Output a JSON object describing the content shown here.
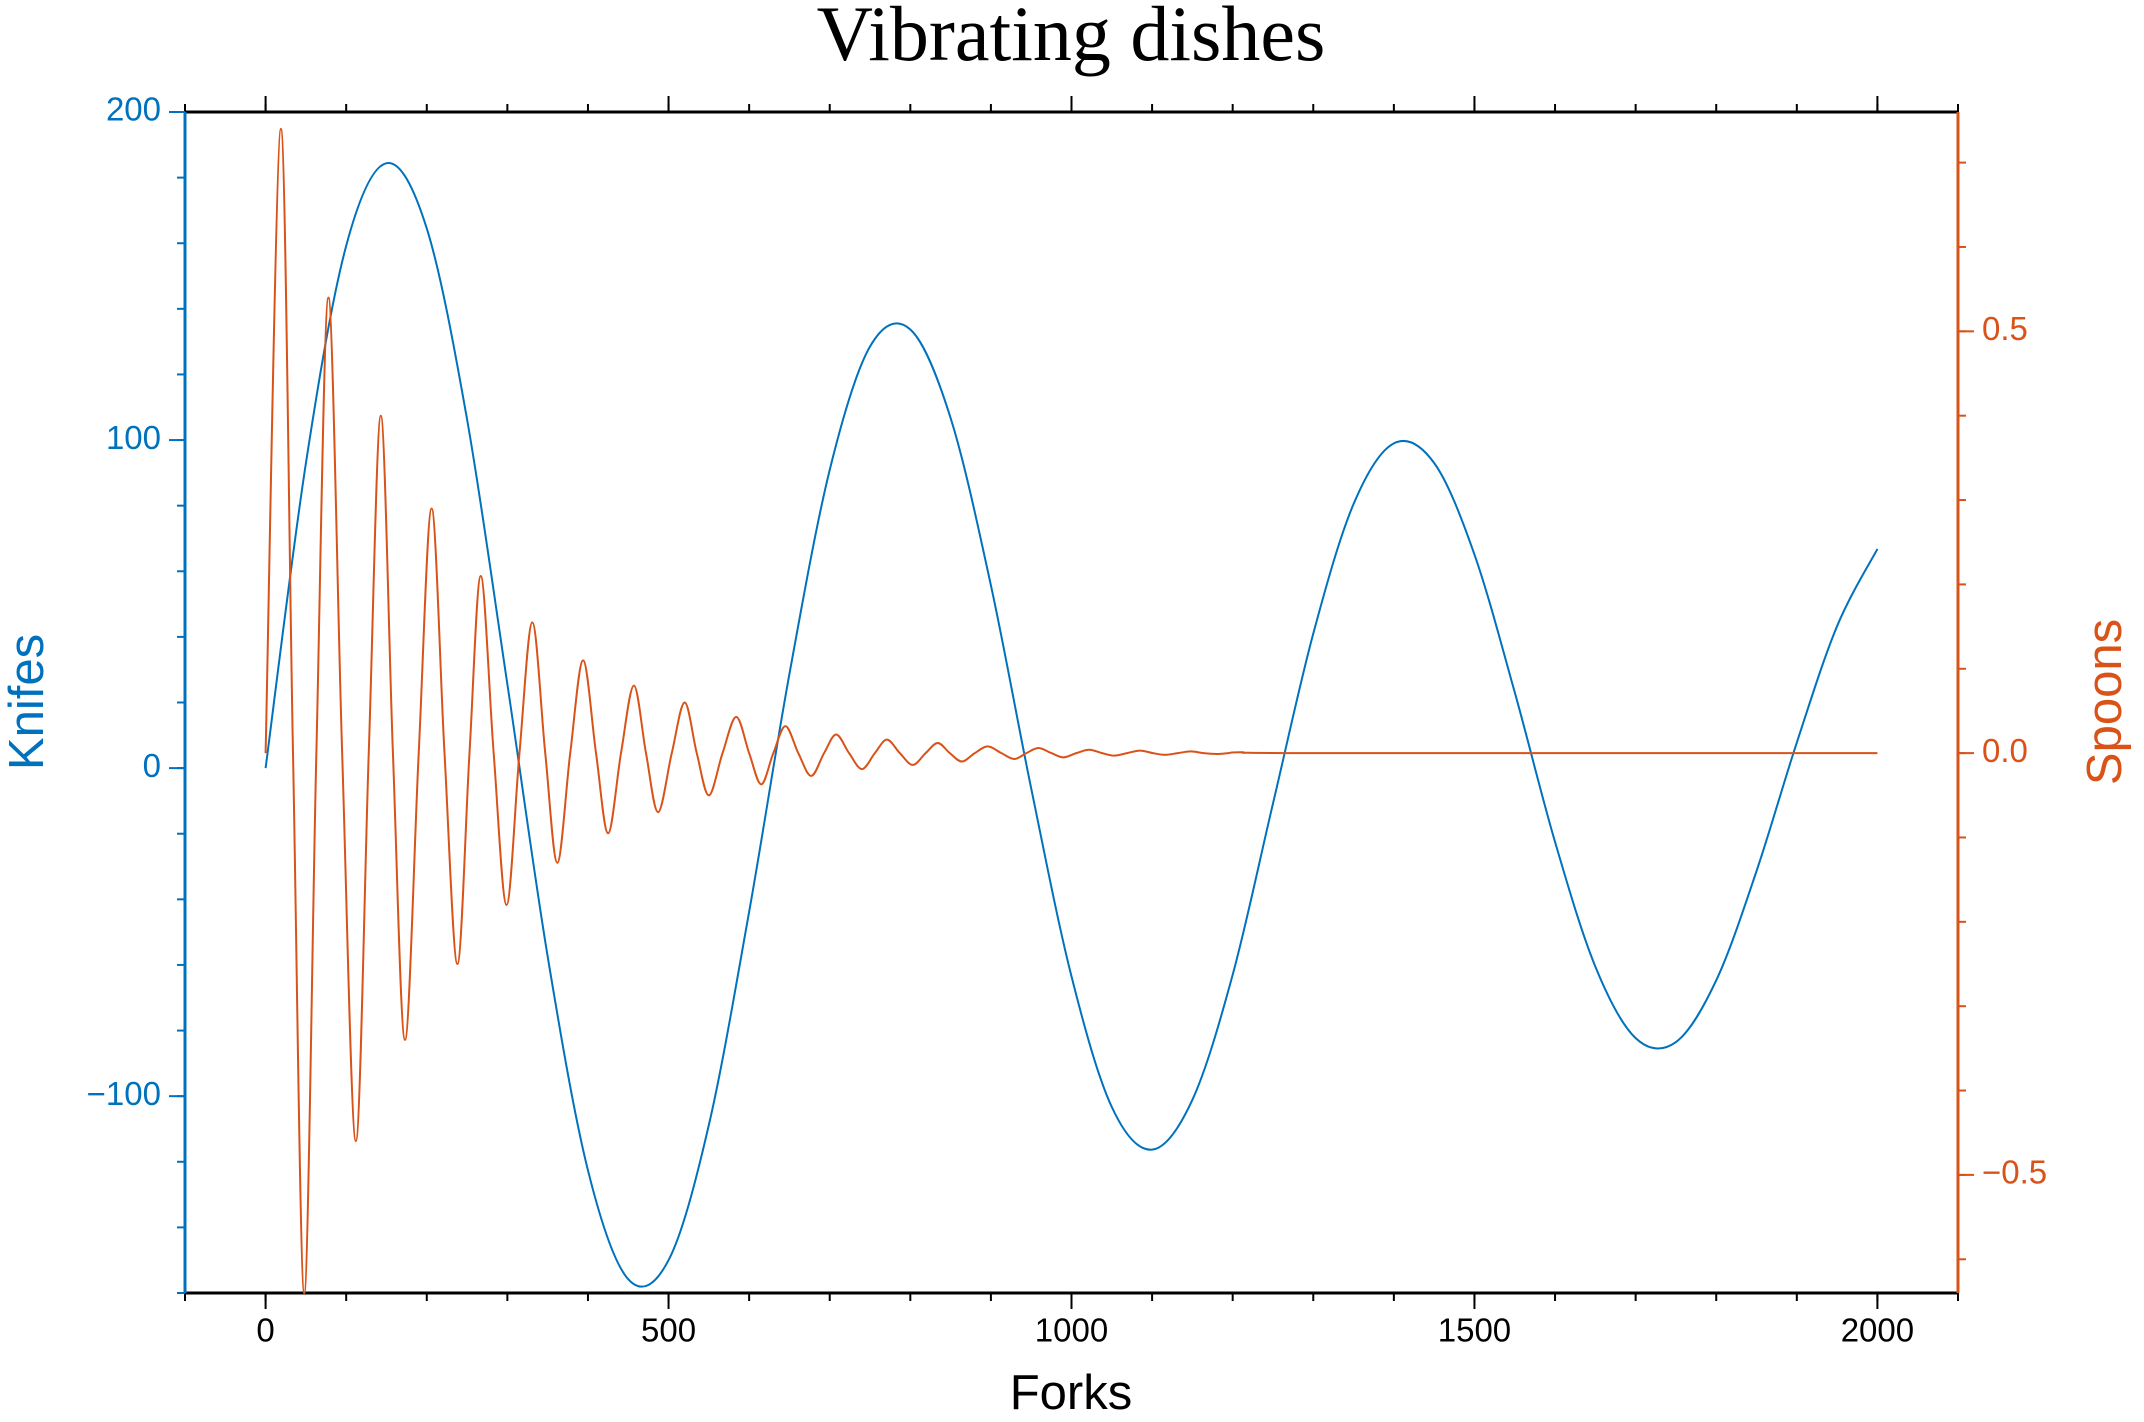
{
  "chart_data": {
    "type": "line",
    "title": "Vibrating dishes",
    "xlabel": "Forks",
    "ylabel": "Knifes",
    "y2label": "Spoons",
    "xlim": [
      -100,
      2100
    ],
    "xticks": [
      0,
      500,
      1000,
      1500,
      2000
    ],
    "xminorticks": [
      -100,
      0,
      100,
      200,
      300,
      400,
      500,
      600,
      700,
      800,
      900,
      1000,
      1100,
      1200,
      1300,
      1400,
      1500,
      1600,
      1700,
      1800,
      1900,
      2000,
      2100
    ],
    "ylim": [
      -160,
      200
    ],
    "yticks": [
      {
        "value": -100,
        "label": "−100"
      },
      0,
      100,
      200
    ],
    "yminorticks": [
      -160,
      -140,
      -120,
      -100,
      -80,
      -60,
      -40,
      -20,
      0,
      20,
      40,
      60,
      80,
      100,
      120,
      140,
      160,
      180,
      200
    ],
    "y2lim": [
      -0.64,
      0.76
    ],
    "y2ticks": [
      {
        "value": -0.5,
        "label": "−0.5"
      },
      {
        "value": 0,
        "label": "0.0"
      },
      0.5
    ],
    "y2minorticks": [
      -0.6,
      -0.5,
      -0.4,
      -0.3,
      -0.2,
      -0.1,
      0,
      0.1,
      0.2,
      0.3,
      0.4,
      0.5,
      0.6,
      0.7
    ],
    "y_color": "#0072bd",
    "y2_color": "#d95319",
    "frame_color": "#000000",
    "series": [
      {
        "color": "#0072bd",
        "x": [
          0,
          50,
          100,
          150,
          200,
          250,
          300,
          350,
          400,
          450,
          500,
          550,
          600,
          650,
          700,
          750,
          800,
          850,
          900,
          950,
          1000,
          1050,
          1100,
          1150,
          1200,
          1250,
          1300,
          1350,
          1400,
          1450,
          1500,
          1550,
          1600,
          1650,
          1700,
          1750,
          1800,
          1850,
          1900,
          1950,
          2000
        ],
        "values": [
          0,
          92.9,
          159.2,
          184.4,
          164.5,
          106.3,
          25.6,
          -57.4,
          -122.6,
          -155.8,
          -150.0,
          -108.8,
          -43.8,
          28.7,
          90.9,
          128.5,
          133.7,
          106.7,
          55.7,
          -6.2,
          -63.5,
          -103.3,
          -116.3,
          -101.1,
          -63.0,
          -10.8,
          41.0,
          80.5,
          99.0,
          93.0,
          65.1,
          23.1,
          -22.5,
          -60.5,
          -82.3,
          -83.5,
          -64.7,
          -31.4,
          7.8,
          43.3,
          66.8
        ]
      },
      {
        "color": "#d95319",
        "axis": "y2",
        "x": [
          0,
          19,
          34,
          48,
          63,
          78,
          95,
          112,
          128,
          143,
          158,
          173,
          190,
          206,
          222,
          238,
          253,
          267,
          283,
          299,
          315,
          331,
          347,
          362,
          378,
          394,
          410,
          425,
          441,
          457,
          472,
          487,
          504,
          520,
          535,
          550,
          567,
          584,
          600,
          615,
          630,
          645,
          661,
          677,
          693,
          708,
          724,
          740,
          756,
          771,
          787,
          803,
          819,
          834,
          849,
          864,
          880,
          896,
          913,
          929,
          944,
          959,
          975,
          990,
          1006,
          1022,
          1038,
          1053,
          1069,
          1085,
          1101,
          1116,
          1132,
          1148,
          1164,
          1180,
          1195,
          1210,
          1300,
          2000
        ],
        "values": [
          0,
          0.74,
          0,
          -0.64,
          0,
          0.54,
          0,
          -0.46,
          0,
          0.4,
          0,
          -0.34,
          0,
          0.29,
          0,
          -0.25,
          0,
          0.21,
          0,
          -0.18,
          0,
          0.155,
          0,
          -0.13,
          0,
          0.11,
          0,
          -0.095,
          0,
          0.08,
          0,
          -0.07,
          0,
          0.06,
          0,
          -0.05,
          0,
          0.043,
          0,
          -0.037,
          0,
          0.032,
          0,
          -0.027,
          0,
          0.022,
          0,
          -0.019,
          0,
          0.016,
          0,
          -0.014,
          0,
          0.012,
          0,
          -0.01,
          0,
          0.008,
          0,
          -0.007,
          0,
          0.006,
          0,
          -0.005,
          0,
          0.004,
          0,
          -0.003,
          0,
          0.003,
          0,
          -0.002,
          0,
          0.002,
          0,
          -0.001,
          0,
          0.001,
          0,
          0
        ]
      }
    ]
  }
}
